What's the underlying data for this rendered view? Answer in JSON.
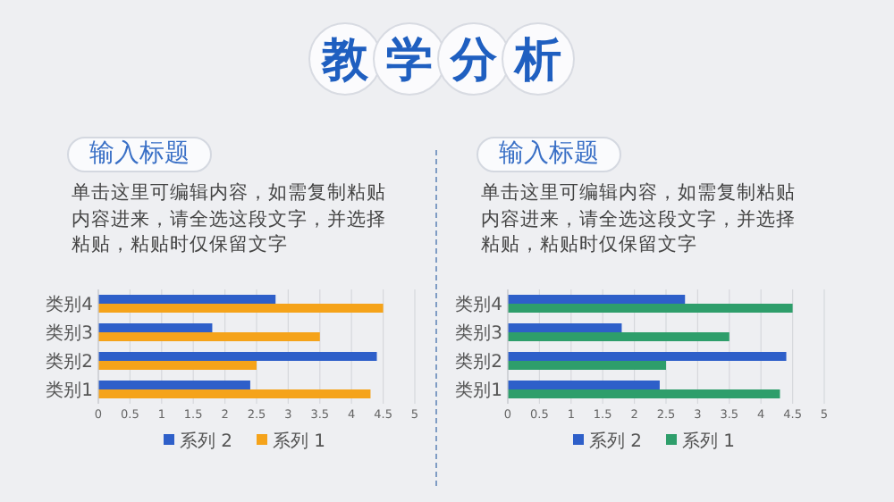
{
  "chart_data": [
    {
      "type": "other",
      "title": "教学分析"
    },
    {
      "type": "bar",
      "orientation": "horizontal",
      "title": "输入标题",
      "subtitle": "单击这里可编辑内容，如需复制粘贴内容进来，请全选这段文字，并选择粘贴，粘贴时仅保留文字",
      "categories": [
        "类别4",
        "类别3",
        "类别2",
        "类别1"
      ],
      "series": [
        {
          "name": "系列 2",
          "color": "#2e5fc9",
          "values": [
            2.8,
            1.8,
            4.4,
            2.4
          ]
        },
        {
          "name": "系列 1",
          "color": "#f5a31a",
          "values": [
            4.5,
            3.5,
            2.5,
            4.3
          ]
        }
      ],
      "xlim": [
        0,
        5
      ],
      "xticks": [
        0,
        0.5,
        1,
        1.5,
        2,
        2.5,
        3,
        3.5,
        4,
        4.5,
        5
      ],
      "grid": "x",
      "legend": "bottom"
    },
    {
      "type": "bar",
      "orientation": "horizontal",
      "title": "输入标题",
      "subtitle": "单击这里可编辑内容，如需复制粘贴内容进来，请全选这段文字，并选择粘贴，粘贴时仅保留文字",
      "categories": [
        "类别4",
        "类别3",
        "类别2",
        "类别1"
      ],
      "series": [
        {
          "name": "系列 2",
          "color": "#2e5fc9",
          "values": [
            2.8,
            1.8,
            4.4,
            2.4
          ]
        },
        {
          "name": "系列 1",
          "color": "#2e9e6b",
          "values": [
            4.5,
            3.5,
            2.5,
            4.3
          ]
        }
      ],
      "xlim": [
        0,
        5
      ],
      "xticks": [
        0,
        0.5,
        1,
        1.5,
        2,
        2.5,
        3,
        3.5,
        4,
        4.5,
        5
      ],
      "grid": "x",
      "legend": "bottom"
    }
  ]
}
